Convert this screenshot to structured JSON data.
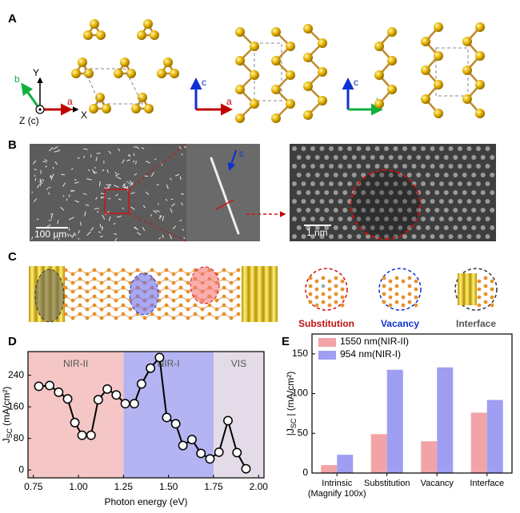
{
  "panel_labels": [
    "A",
    "B",
    "C",
    "D",
    "E"
  ],
  "panel_a": {
    "frame": {
      "y": "Y",
      "x": "X",
      "z": "Z (c)",
      "a": "a",
      "b": "b"
    },
    "view_ca": {
      "c": "c",
      "a": "a"
    },
    "view_cb": {
      "c": "c",
      "b": "b"
    }
  },
  "panel_b": {
    "scale_left": "100 μm",
    "scale_right": "1 nm",
    "direction": "c"
  },
  "panel_c": {
    "defects": [
      "Substitution",
      "Vacancy",
      "Interface"
    ]
  },
  "chart_data": [
    {
      "type": "line",
      "x": [
        0.78,
        0.84,
        0.89,
        0.94,
        0.98,
        1.02,
        1.07,
        1.11,
        1.16,
        1.21,
        1.26,
        1.31,
        1.35,
        1.4,
        1.45,
        1.49,
        1.54,
        1.58,
        1.63,
        1.68,
        1.73,
        1.78,
        1.83,
        1.88,
        1.93
      ],
      "values": [
        212,
        214,
        197,
        180,
        120,
        88,
        88,
        178,
        205,
        190,
        168,
        168,
        218,
        258,
        285,
        133,
        117,
        62,
        77,
        42,
        28,
        45,
        125,
        44,
        3
      ],
      "color": "#000000",
      "xlabel": "Photon energy (eV)",
      "ylabel": {
        "symbol": "J",
        "subscript": "SC",
        "unit": "(mA/cm²)"
      },
      "xlim": [
        0.72,
        2.03
      ],
      "xticks": [
        0.75,
        {
          "value": 1,
          "label": "1.00"
        },
        1.25,
        {
          "value": 1.5,
          "label": "1.50"
        },
        1.75,
        {
          "value": 2,
          "label": "2.00"
        }
      ],
      "ylim": [
        -20,
        300
      ],
      "yticks": [
        0,
        80,
        160,
        240
      ],
      "regions": [
        {
          "label": "NIR-II",
          "from": 0.72,
          "to": 1.25,
          "color": "#f4c6c6"
        },
        {
          "label": "NIR-I",
          "from": 1.25,
          "to": 1.75,
          "color": "#b4b4f2"
        },
        {
          "label": "VIS",
          "from": 1.75,
          "to": 2.03,
          "color": "#e4dbe8"
        }
      ]
    },
    {
      "type": "bar",
      "categories": [
        "Intrinsic\n(Magnify 100x)",
        "Substitution",
        "Vacancy",
        "Interface"
      ],
      "series": [
        {
          "name": "1550 nm(NIR-II)",
          "color": "#f2a3a6",
          "values": [
            10,
            49,
            40,
            76
          ]
        },
        {
          "name": "954 nm(NIR-I)",
          "color": "#9e9ef2",
          "values": [
            23,
            130,
            133,
            92
          ]
        }
      ],
      "ylabel": {
        "symbol": "|J",
        "subscript": "SC",
        "unit": "| (mA/cm²)"
      },
      "ylim": [
        0,
        175
      ],
      "yticks": [
        0,
        50,
        100,
        150
      ],
      "legend": "upper left"
    }
  ]
}
